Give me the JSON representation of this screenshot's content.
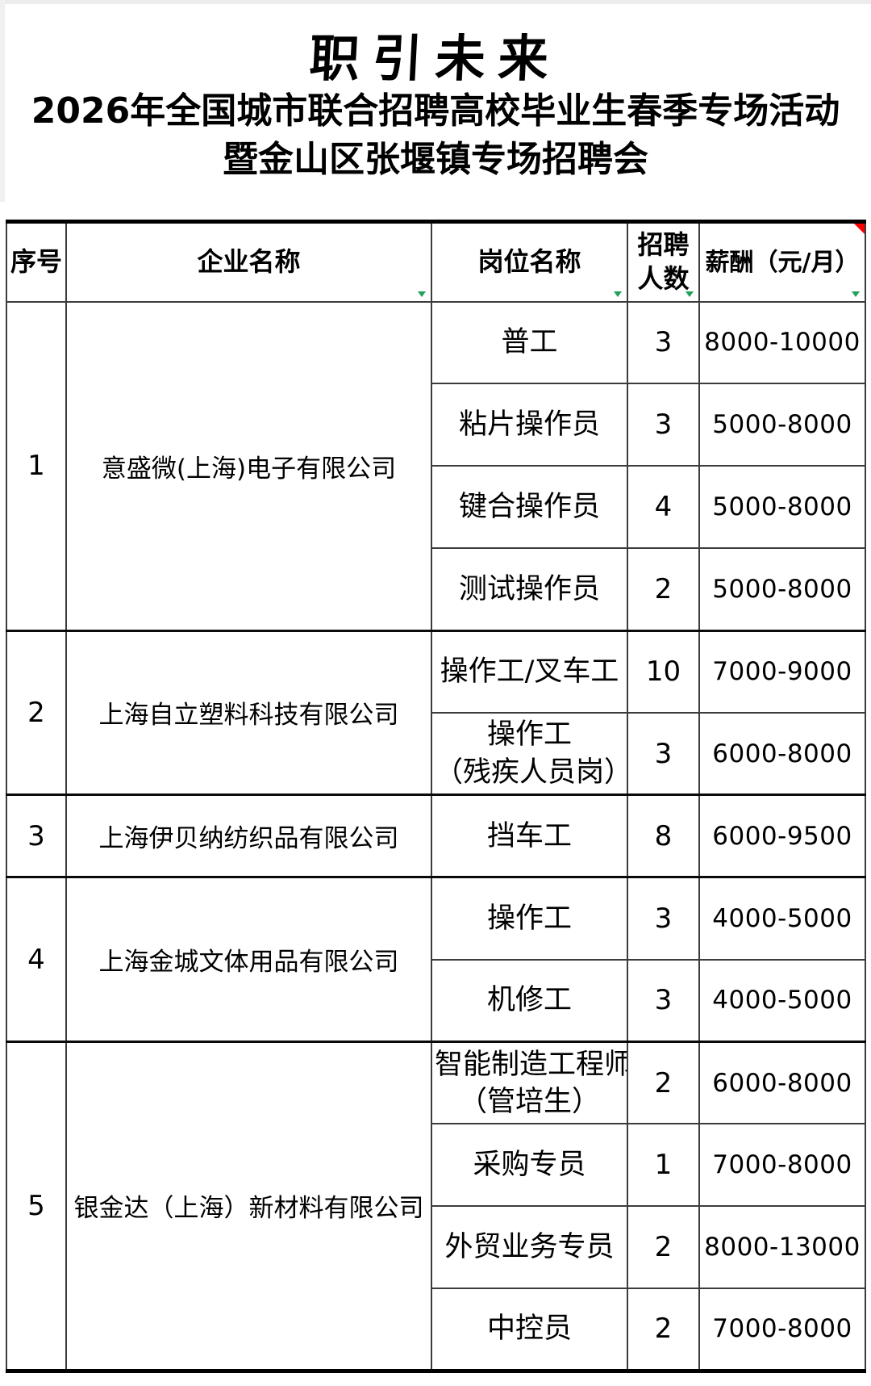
{
  "header": {
    "calligraphy": "职引未来",
    "title_line1": "2026年全国城市联合招聘高校毕业生春季专场活动",
    "title_line2": "暨金山区张堰镇专场招聘会"
  },
  "table": {
    "columns": [
      {
        "key": "serial",
        "label": "序号",
        "filter": false,
        "comment_marker": false
      },
      {
        "key": "company",
        "label": "企业名称",
        "filter": true,
        "comment_marker": false
      },
      {
        "key": "position",
        "label": "岗位名称",
        "filter": true,
        "comment_marker": false
      },
      {
        "key": "headcount",
        "label": "招聘人数",
        "filter": true,
        "comment_marker": false
      },
      {
        "key": "salary",
        "label": "薪酬（元/月）",
        "filter": true,
        "comment_marker": true
      }
    ],
    "colors": {
      "filter_arrow": "#21A05A",
      "comment_marker": "#FF0000",
      "grid": "#3C3C3C",
      "frame": "#000000"
    },
    "companies": [
      {
        "no": "1",
        "name": "意盛微(上海)电子有限公司",
        "jobs": [
          {
            "title": [
              "普工"
            ],
            "count": "3",
            "salary": "8000-10000"
          },
          {
            "title": [
              "粘片操作员"
            ],
            "count": "3",
            "salary": "5000-8000"
          },
          {
            "title": [
              "键合操作员"
            ],
            "count": "4",
            "salary": "5000-8000"
          },
          {
            "title": [
              "测试操作员"
            ],
            "count": "2",
            "salary": "5000-8000"
          }
        ]
      },
      {
        "no": "2",
        "name": "上海自立塑料科技有限公司",
        "jobs": [
          {
            "title": [
              "操作工/叉车工"
            ],
            "count": "10",
            "salary": "7000-9000"
          },
          {
            "title": [
              "操作工",
              "（残疾人员岗）"
            ],
            "count": "3",
            "salary": "6000-8000"
          }
        ]
      },
      {
        "no": "3",
        "name": "上海伊贝纳纺织品有限公司",
        "jobs": [
          {
            "title": [
              "挡车工"
            ],
            "count": "8",
            "salary": "6000-9500"
          }
        ]
      },
      {
        "no": "4",
        "name": "上海金城文体用品有限公司",
        "jobs": [
          {
            "title": [
              "操作工"
            ],
            "count": "3",
            "salary": "4000-5000"
          },
          {
            "title": [
              "机修工"
            ],
            "count": "3",
            "salary": "4000-5000"
          }
        ]
      },
      {
        "no": "5",
        "name": "银金达（上海）新材料有限公司",
        "jobs": [
          {
            "title": [
              "智能制造工程师",
              "（管培生）"
            ],
            "count": "2",
            "salary": "6000-8000"
          },
          {
            "title": [
              "采购专员"
            ],
            "count": "1",
            "salary": "7000-8000"
          },
          {
            "title": [
              "外贸业务专员"
            ],
            "count": "2",
            "salary": "8000-13000"
          },
          {
            "title": [
              "中控员"
            ],
            "count": "2",
            "salary": "7000-8000"
          }
        ]
      }
    ]
  }
}
